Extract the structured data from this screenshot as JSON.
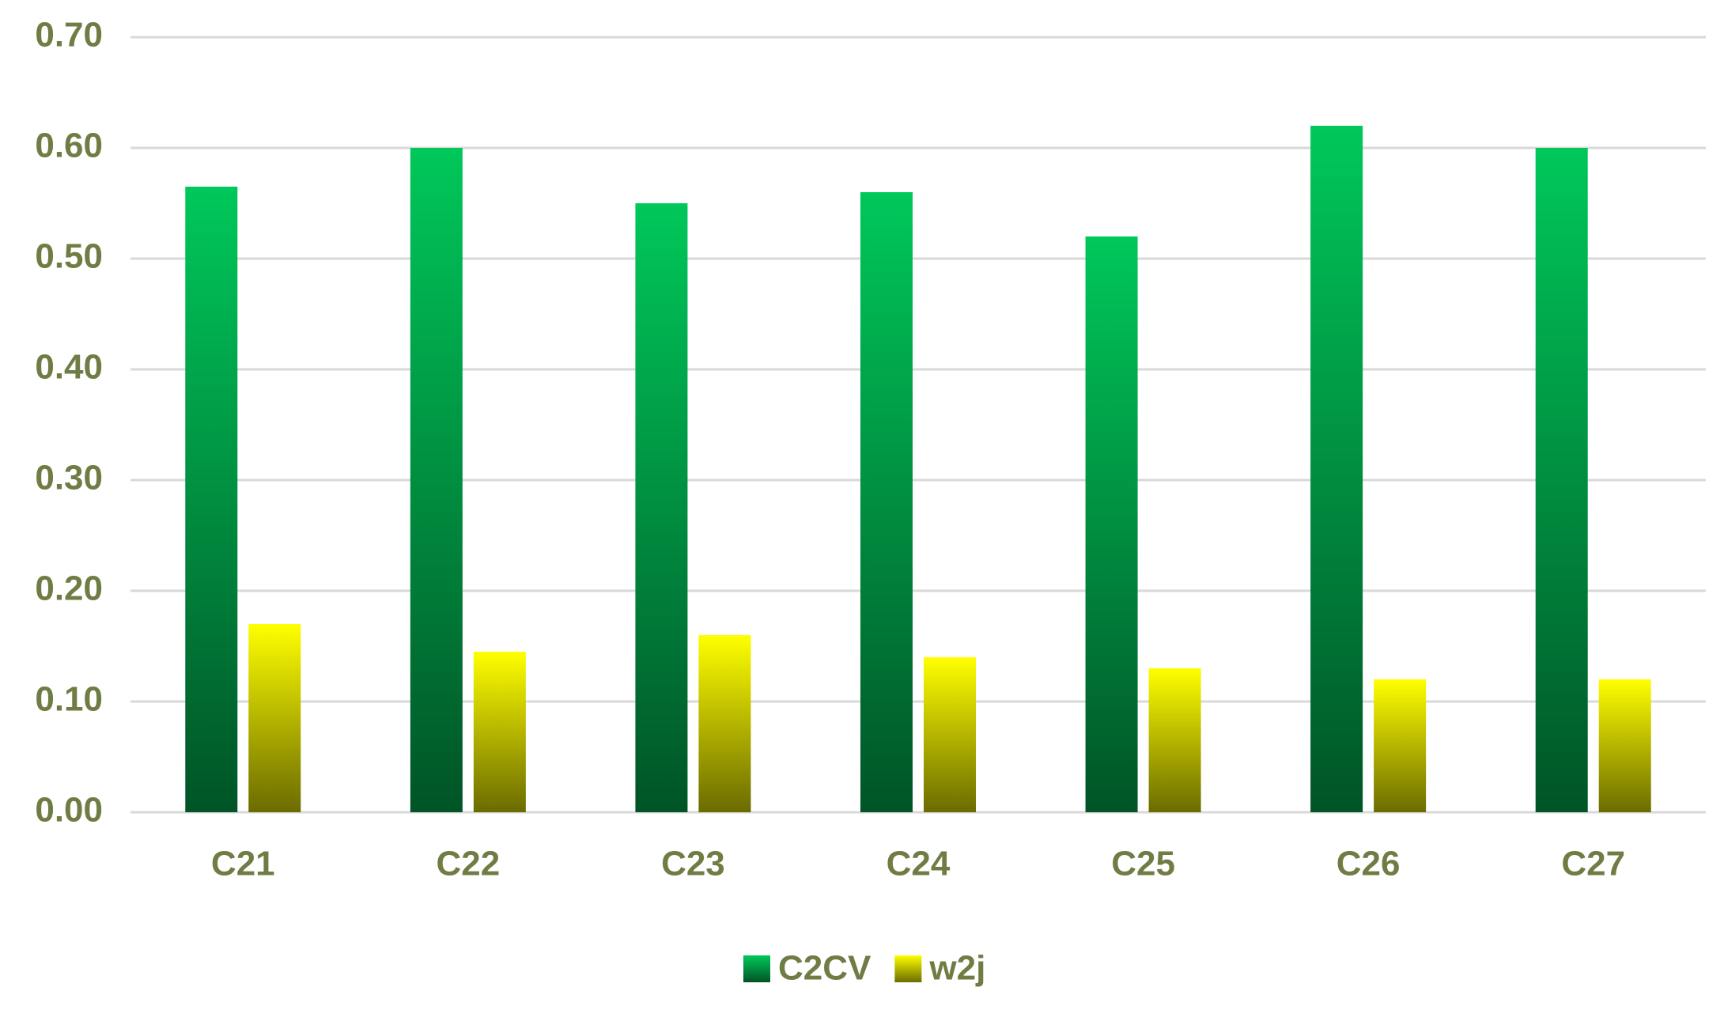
{
  "chart_data": {
    "type": "bar",
    "categories": [
      "C21",
      "C22",
      "C23",
      "C24",
      "C25",
      "C26",
      "C27"
    ],
    "series": [
      {
        "name": "C2CV",
        "color": "#00c85a",
        "values": [
          0.565,
          0.6,
          0.55,
          0.56,
          0.52,
          0.62,
          0.6
        ]
      },
      {
        "name": "w2j",
        "color": "#ffff00",
        "values": [
          0.17,
          0.145,
          0.16,
          0.14,
          0.13,
          0.12,
          0.12
        ]
      }
    ],
    "ylim": [
      0,
      0.7
    ],
    "yticks": [
      {
        "value": 0,
        "label": "0.00"
      },
      {
        "value": 0.1,
        "label": "0.10"
      },
      {
        "value": 0.2,
        "label": "0.20"
      },
      {
        "value": 0.3,
        "label": "0.30"
      },
      {
        "value": 0.4,
        "label": "0.40"
      },
      {
        "value": 0.5,
        "label": "0.50"
      },
      {
        "value": 0.6,
        "label": "0.60"
      },
      {
        "value": 0.7,
        "label": "0.70"
      }
    ],
    "grid": true
  }
}
